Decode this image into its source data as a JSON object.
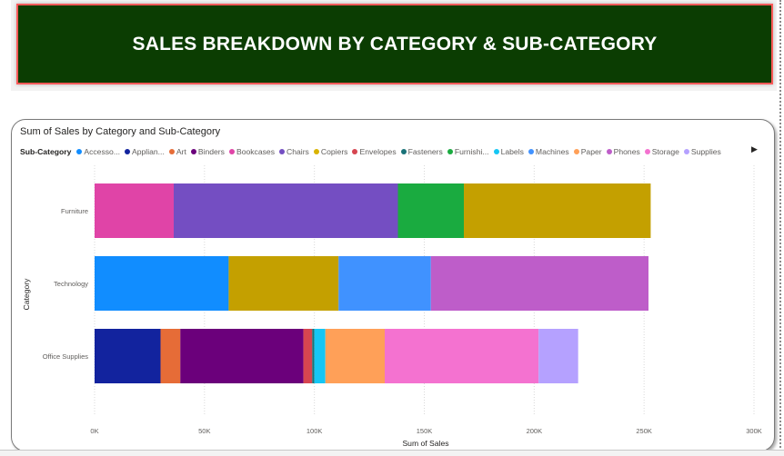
{
  "banner": {
    "title": "SALES BREAKDOWN BY CATEGORY & SUB-CATEGORY"
  },
  "chart_data": {
    "type": "bar",
    "orientation": "horizontal",
    "stacked": true,
    "title": "Sum of Sales by Category and Sub-Category",
    "xlabel": "Sum of Sales",
    "ylabel": "Category",
    "legend_title": "Sub-Category",
    "legend_position": "top",
    "xlim": [
      0,
      300000
    ],
    "x_ticks": [
      "0K",
      "50K",
      "100K",
      "150K",
      "200K",
      "250K",
      "300K"
    ],
    "grid": "vertical dotted",
    "categories": [
      "Furniture",
      "Technology",
      "Office Supplies"
    ],
    "legend": [
      {
        "label": "Accesso...",
        "color": "#118DFF"
      },
      {
        "label": "Applian...",
        "color": "#12239E"
      },
      {
        "label": "Art",
        "color": "#E66C37"
      },
      {
        "label": "Binders",
        "color": "#6B007B"
      },
      {
        "label": "Bookcases",
        "color": "#E044A7"
      },
      {
        "label": "Chairs",
        "color": "#744EC2"
      },
      {
        "label": "Copiers",
        "color": "#D9B300"
      },
      {
        "label": "Envelopes",
        "color": "#D64550"
      },
      {
        "label": "Fasteners",
        "color": "#197278"
      },
      {
        "label": "Furnishi...",
        "color": "#1AAB40"
      },
      {
        "label": "Labels",
        "color": "#15C6F4"
      },
      {
        "label": "Machines",
        "color": "#4092FF"
      },
      {
        "label": "Paper",
        "color": "#FFA058"
      },
      {
        "label": "Phones",
        "color": "#BE5DC9"
      },
      {
        "label": "Storage",
        "color": "#F472D0"
      },
      {
        "label": "Supplies",
        "color": "#B5A1FF"
      }
    ],
    "series": [
      {
        "name": "Accessories",
        "color": "#118DFF",
        "values": [
          0,
          61000,
          0
        ]
      },
      {
        "name": "Appliances",
        "color": "#12239E",
        "values": [
          0,
          0,
          30000
        ]
      },
      {
        "name": "Art",
        "color": "#E66C37",
        "values": [
          0,
          0,
          9000
        ]
      },
      {
        "name": "Binders",
        "color": "#6B007B",
        "values": [
          0,
          0,
          56000
        ]
      },
      {
        "name": "Bookcases",
        "color": "#E044A7",
        "values": [
          36000,
          0,
          0
        ]
      },
      {
        "name": "Chairs",
        "color": "#744EC2",
        "values": [
          102000,
          0,
          0
        ]
      },
      {
        "name": "Copiers",
        "color": "#C4A000",
        "values": [
          85000,
          50000,
          0
        ]
      },
      {
        "name": "Envelopes",
        "color": "#D64550",
        "values": [
          0,
          0,
          4000
        ]
      },
      {
        "name": "Fasteners",
        "color": "#197278",
        "values": [
          0,
          0,
          1000
        ]
      },
      {
        "name": "Furnishings",
        "color": "#1AAB40",
        "values": [
          30000,
          0,
          0
        ]
      },
      {
        "name": "Labels",
        "color": "#15C6F4",
        "values": [
          0,
          0,
          5000
        ]
      },
      {
        "name": "Machines",
        "color": "#4092FF",
        "values": [
          0,
          42000,
          0
        ]
      },
      {
        "name": "Paper",
        "color": "#FFA058",
        "values": [
          0,
          0,
          27000
        ]
      },
      {
        "name": "Phones",
        "color": "#BE5DC9",
        "values": [
          0,
          99000,
          0
        ]
      },
      {
        "name": "Storage",
        "color": "#F472D0",
        "values": [
          0,
          0,
          70000
        ]
      },
      {
        "name": "Supplies",
        "color": "#B5A1FF",
        "values": [
          0,
          0,
          18000
        ]
      }
    ],
    "stack_order": [
      [
        "Bookcases",
        "Chairs",
        "Furnishings",
        "Copiers"
      ],
      [
        "Accessories",
        "Copiers",
        "Machines",
        "Phones"
      ],
      [
        "Appliances",
        "Art",
        "Binders",
        "Envelopes",
        "Fasteners",
        "Labels",
        "Paper",
        "Storage",
        "Supplies"
      ]
    ]
  }
}
